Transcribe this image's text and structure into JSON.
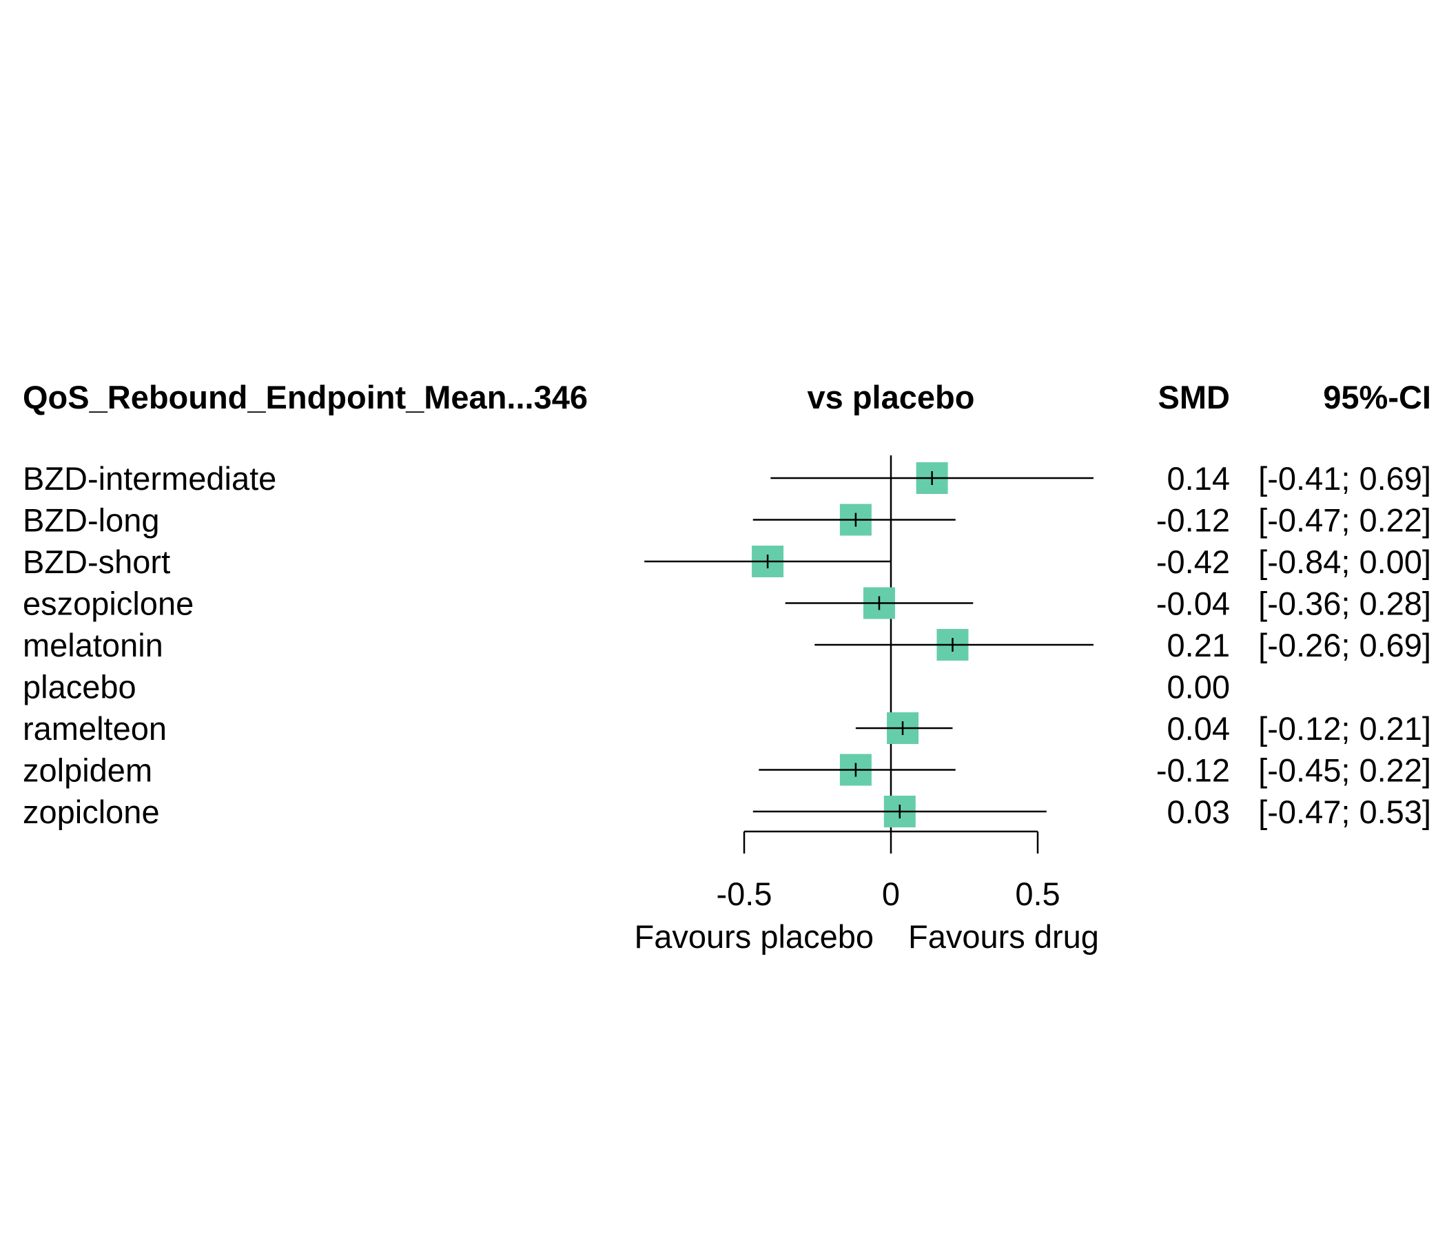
{
  "headers": {
    "outcome": "QoS_Rebound_Endpoint_Mean...346",
    "comparison": "vs placebo",
    "effect": "SMD",
    "ci": "95%-CI"
  },
  "colors": {
    "square": "#66CDAA",
    "line": "#000000"
  },
  "chart_data": {
    "type": "forest",
    "measure": "SMD",
    "reference": "placebo",
    "xlim": [
      -0.5,
      0.5
    ],
    "xticks": [
      -0.5,
      0,
      0.5
    ],
    "xtick_labels": [
      "-0.5",
      "0",
      "0.5"
    ],
    "favours_left": "Favours placebo",
    "favours_right": "Favours drug",
    "rows": [
      {
        "label": "BZD-intermediate",
        "estimate": 0.14,
        "lower": -0.41,
        "upper": 0.69,
        "estimate_text": "0.14",
        "ci_text": "[-0.41; 0.69]"
      },
      {
        "label": "BZD-long",
        "estimate": -0.12,
        "lower": -0.47,
        "upper": 0.22,
        "estimate_text": "-0.12",
        "ci_text": "[-0.47; 0.22]"
      },
      {
        "label": "BZD-short",
        "estimate": -0.42,
        "lower": -0.84,
        "upper": 0.0,
        "estimate_text": "-0.42",
        "ci_text": "[-0.84; 0.00]"
      },
      {
        "label": "eszopiclone",
        "estimate": -0.04,
        "lower": -0.36,
        "upper": 0.28,
        "estimate_text": "-0.04",
        "ci_text": "[-0.36; 0.28]"
      },
      {
        "label": "melatonin",
        "estimate": 0.21,
        "lower": -0.26,
        "upper": 0.69,
        "estimate_text": "0.21",
        "ci_text": "[-0.26; 0.69]"
      },
      {
        "label": "placebo",
        "estimate": 0.0,
        "lower": null,
        "upper": null,
        "estimate_text": "0.00",
        "ci_text": ""
      },
      {
        "label": "ramelteon",
        "estimate": 0.04,
        "lower": -0.12,
        "upper": 0.21,
        "estimate_text": "0.04",
        "ci_text": "[-0.12; 0.21]"
      },
      {
        "label": "zolpidem",
        "estimate": -0.12,
        "lower": -0.45,
        "upper": 0.22,
        "estimate_text": "-0.12",
        "ci_text": "[-0.45; 0.22]"
      },
      {
        "label": "zopiclone",
        "estimate": 0.03,
        "lower": -0.47,
        "upper": 0.53,
        "estimate_text": "0.03",
        "ci_text": "[-0.47; 0.53]"
      }
    ]
  }
}
